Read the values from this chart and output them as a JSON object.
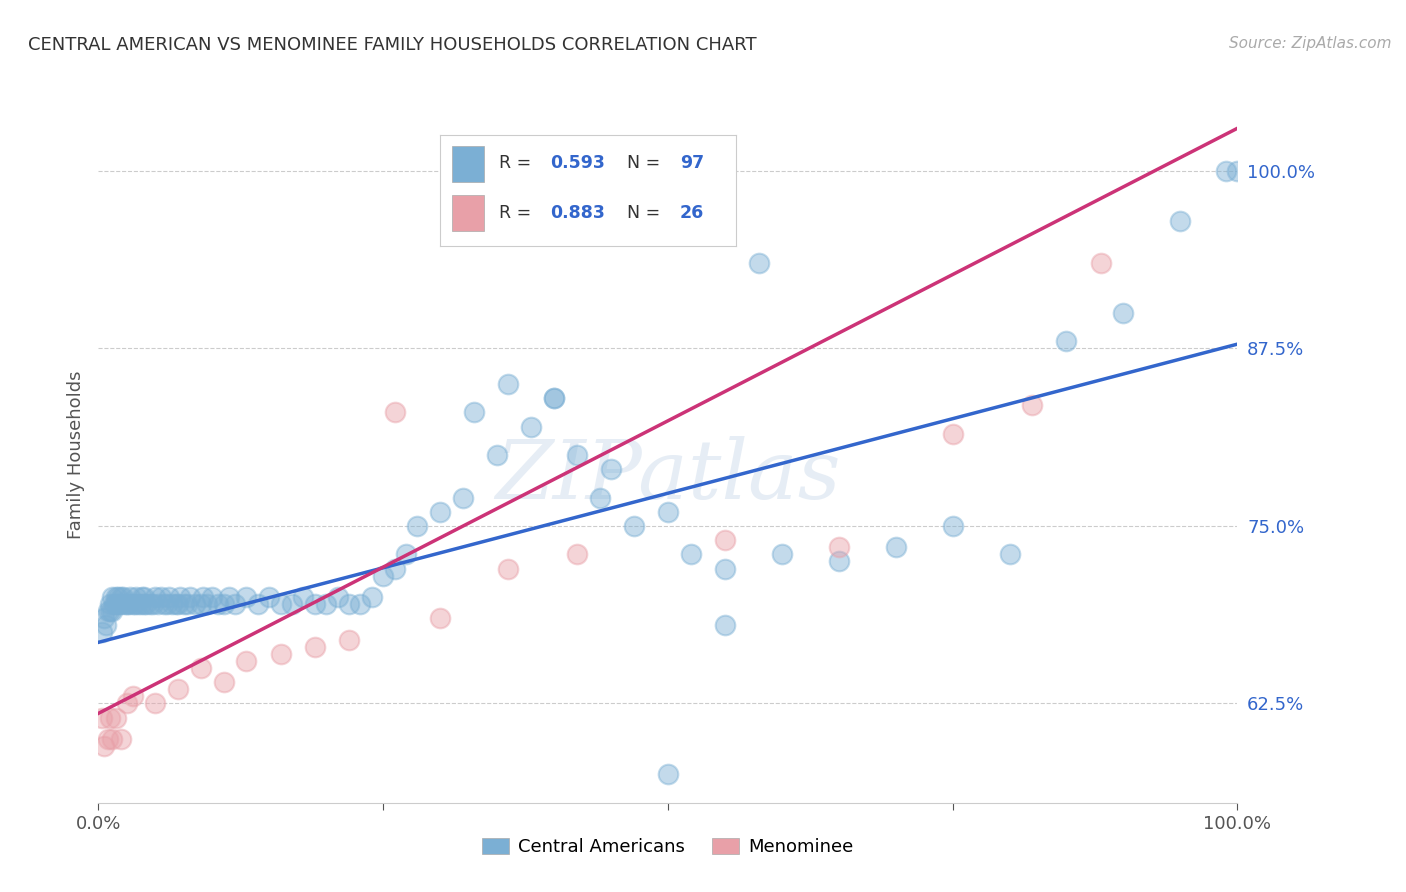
{
  "title": "CENTRAL AMERICAN VS MENOMINEE FAMILY HOUSEHOLDS CORRELATION CHART",
  "source": "Source: ZipAtlas.com",
  "ylabel": "Family Households",
  "blue_color": "#7bafd4",
  "pink_color": "#e8a0a8",
  "blue_line_color": "#3366cc",
  "pink_line_color": "#cc3377",
  "ytick_color": "#3366cc",
  "watermark": "ZIPatlas",
  "background_color": "#ffffff",
  "grid_color": "#cccccc",
  "legend_blue_R": "0.593",
  "legend_blue_N": "97",
  "legend_pink_R": "0.883",
  "legend_pink_N": "26",
  "blue_line_x0": 0.0,
  "blue_line_y0": 0.668,
  "blue_line_x1": 1.0,
  "blue_line_y1": 0.878,
  "pink_line_x0": 0.0,
  "pink_line_y0": 0.618,
  "pink_line_x1": 1.0,
  "pink_line_y1": 1.03,
  "xlim": [
    0.0,
    1.0
  ],
  "ylim": [
    0.555,
    1.045
  ],
  "yticks": [
    0.625,
    0.75,
    0.875,
    1.0
  ],
  "blue_x": [
    0.003,
    0.005,
    0.007,
    0.008,
    0.01,
    0.01,
    0.012,
    0.012,
    0.014,
    0.015,
    0.015,
    0.017,
    0.018,
    0.02,
    0.02,
    0.022,
    0.023,
    0.025,
    0.027,
    0.028,
    0.03,
    0.032,
    0.033,
    0.035,
    0.037,
    0.038,
    0.04,
    0.04,
    0.042,
    0.045,
    0.048,
    0.05,
    0.052,
    0.055,
    0.058,
    0.06,
    0.062,
    0.065,
    0.068,
    0.07,
    0.072,
    0.075,
    0.078,
    0.08,
    0.085,
    0.09,
    0.092,
    0.095,
    0.1,
    0.105,
    0.11,
    0.115,
    0.12,
    0.13,
    0.14,
    0.15,
    0.16,
    0.17,
    0.18,
    0.19,
    0.2,
    0.21,
    0.22,
    0.23,
    0.24,
    0.25,
    0.26,
    0.27,
    0.28,
    0.3,
    0.32,
    0.35,
    0.38,
    0.4,
    0.42,
    0.44,
    0.47,
    0.5,
    0.52,
    0.55,
    0.58,
    0.6,
    0.65,
    0.7,
    0.75,
    0.8,
    0.85,
    0.9,
    0.95,
    0.99,
    1.0,
    0.33,
    0.36,
    0.4,
    0.45,
    0.5,
    0.55
  ],
  "blue_y": [
    0.675,
    0.685,
    0.68,
    0.69,
    0.69,
    0.695,
    0.7,
    0.69,
    0.695,
    0.7,
    0.695,
    0.7,
    0.695,
    0.695,
    0.7,
    0.7,
    0.695,
    0.695,
    0.695,
    0.7,
    0.695,
    0.695,
    0.7,
    0.695,
    0.695,
    0.7,
    0.695,
    0.7,
    0.695,
    0.695,
    0.695,
    0.7,
    0.695,
    0.7,
    0.695,
    0.695,
    0.7,
    0.695,
    0.695,
    0.695,
    0.7,
    0.695,
    0.695,
    0.7,
    0.695,
    0.695,
    0.7,
    0.695,
    0.7,
    0.695,
    0.695,
    0.7,
    0.695,
    0.7,
    0.695,
    0.7,
    0.695,
    0.695,
    0.7,
    0.695,
    0.695,
    0.7,
    0.695,
    0.695,
    0.7,
    0.715,
    0.72,
    0.73,
    0.75,
    0.76,
    0.77,
    0.8,
    0.82,
    0.84,
    0.8,
    0.77,
    0.75,
    0.76,
    0.73,
    0.72,
    0.935,
    0.73,
    0.725,
    0.735,
    0.75,
    0.73,
    0.88,
    0.9,
    0.965,
    1.0,
    1.0,
    0.83,
    0.85,
    0.84,
    0.79,
    0.575,
    0.68
  ],
  "pink_x": [
    0.003,
    0.005,
    0.008,
    0.01,
    0.012,
    0.015,
    0.02,
    0.025,
    0.03,
    0.05,
    0.07,
    0.09,
    0.11,
    0.13,
    0.16,
    0.19,
    0.22,
    0.26,
    0.3,
    0.36,
    0.42,
    0.55,
    0.65,
    0.75,
    0.82,
    0.88
  ],
  "pink_y": [
    0.615,
    0.595,
    0.6,
    0.615,
    0.6,
    0.615,
    0.6,
    0.625,
    0.63,
    0.625,
    0.635,
    0.65,
    0.64,
    0.655,
    0.66,
    0.665,
    0.67,
    0.83,
    0.685,
    0.72,
    0.73,
    0.74,
    0.735,
    0.815,
    0.835,
    0.935
  ]
}
